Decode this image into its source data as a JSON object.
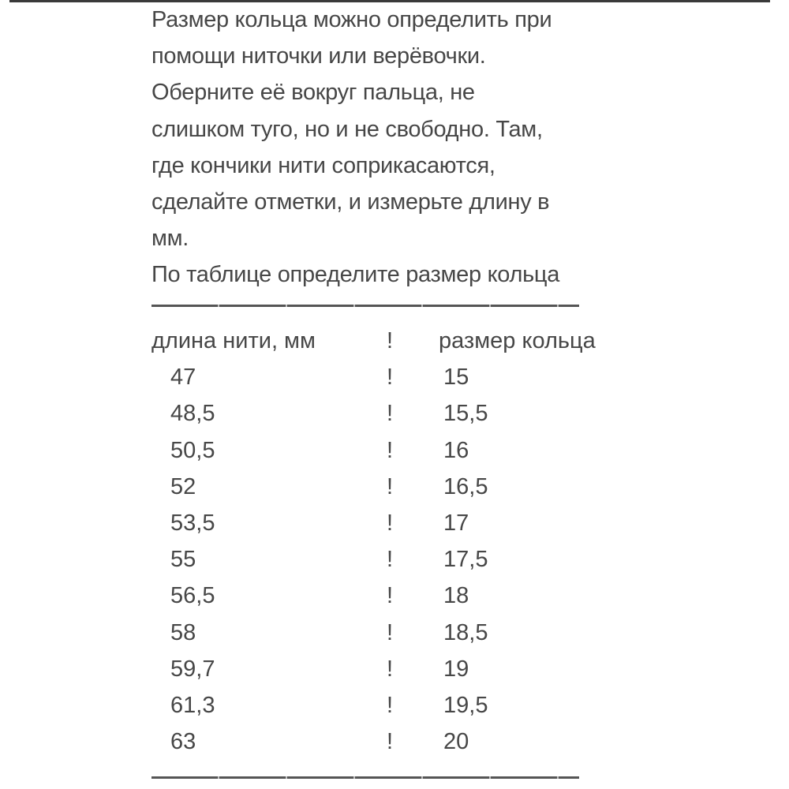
{
  "paragraph": [
    "Размер кольца можно определить при",
    "помощи ниточки или верёвочки.",
    "Оберните её вокруг пальца, не",
    "слишком туго, но и не свободно. Там,",
    "где кончики нити соприкасаются,",
    "сделайте отметки, и измерьте длину в",
    "мм.",
    "По таблице определите размер кольца"
  ],
  "table": {
    "headers": [
      "длина нити, мм",
      "!",
      "размер кольца"
    ],
    "separator": "!",
    "rows": [
      [
        "47",
        "15"
      ],
      [
        "48,5",
        "15,5"
      ],
      [
        "50,5",
        "16"
      ],
      [
        "52",
        "16,5"
      ],
      [
        "53,5",
        "17"
      ],
      [
        "55",
        "17,5"
      ],
      [
        "56,5",
        "18"
      ],
      [
        "58",
        "18,5"
      ],
      [
        "59,7",
        "19"
      ],
      [
        "61,3",
        "19,5"
      ],
      [
        "63",
        "20"
      ]
    ]
  }
}
